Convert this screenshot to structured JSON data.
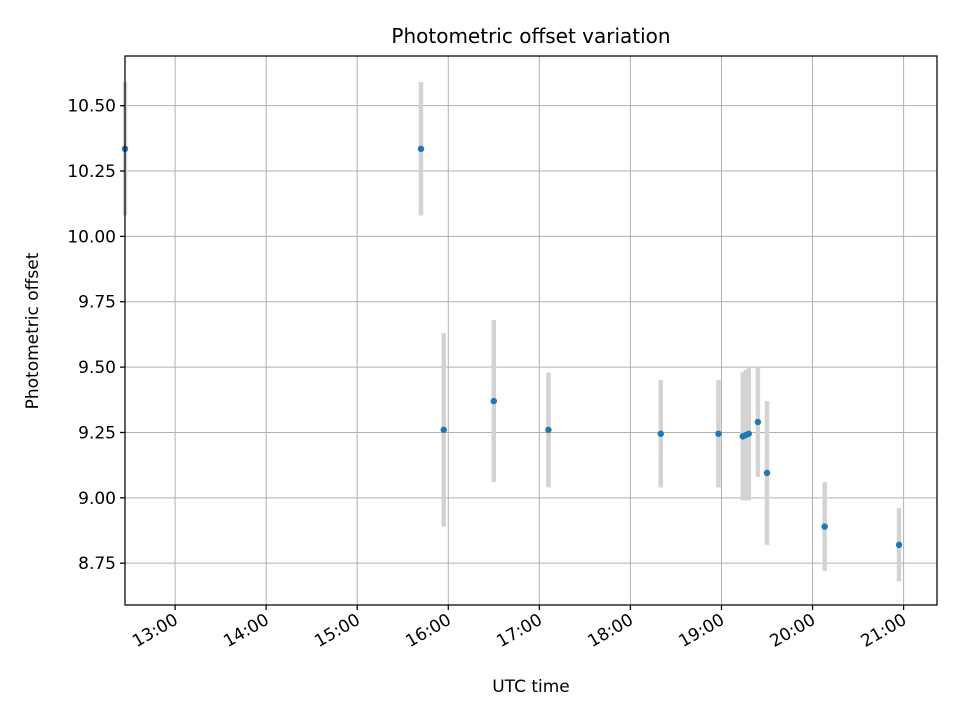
{
  "chart_data": {
    "type": "scatter",
    "title": "Photometric offset variation",
    "xlabel": "UTC time",
    "ylabel": "Photometric offset",
    "x_ticks": [
      "13:00",
      "14:00",
      "15:00",
      "16:00",
      "17:00",
      "18:00",
      "19:00",
      "20:00",
      "21:00"
    ],
    "y_ticks": [
      "8.75",
      "9.00",
      "9.25",
      "9.50",
      "9.75",
      "10.00",
      "10.25",
      "10.50"
    ],
    "xlim": [
      "12:27",
      "21:22"
    ],
    "ylim": [
      8.59,
      10.69
    ],
    "grid": true,
    "marker_color": "#1f77b4",
    "errorbar_color": "#d3d3d3",
    "points": [
      {
        "x": "12:27",
        "y": 10.335,
        "yerr": 0.255
      },
      {
        "x": "15:42",
        "y": 10.335,
        "yerr": 0.255
      },
      {
        "x": "15:57",
        "y": 9.26,
        "yerr": 0.37
      },
      {
        "x": "16:30",
        "y": 9.37,
        "yerr": 0.31
      },
      {
        "x": "17:06",
        "y": 9.26,
        "yerr": 0.22
      },
      {
        "x": "18:20",
        "y": 9.245,
        "yerr": 0.205
      },
      {
        "x": "18:58",
        "y": 9.245,
        "yerr": 0.205
      },
      {
        "x": "19:14",
        "y": 9.235,
        "yerr": 0.245
      },
      {
        "x": "19:16",
        "y": 9.24,
        "yerr": 0.25
      },
      {
        "x": "19:18",
        "y": 9.245,
        "yerr": 0.255
      },
      {
        "x": "19:24",
        "y": 9.29,
        "yerr": 0.21
      },
      {
        "x": "19:30",
        "y": 9.095,
        "yerr": 0.275
      },
      {
        "x": "20:08",
        "y": 8.89,
        "yerr": 0.17
      },
      {
        "x": "20:57",
        "y": 8.82,
        "yerr": 0.14
      }
    ]
  }
}
